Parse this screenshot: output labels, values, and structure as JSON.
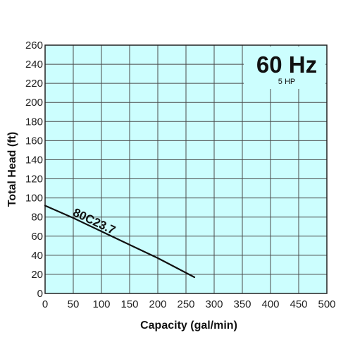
{
  "chart_data": {
    "type": "line",
    "title": "60 Hz",
    "subtitle": "5 HP",
    "xlabel": "Capacity (gal/min)",
    "ylabel": "Total Head (ft)",
    "xlim": [
      0,
      500
    ],
    "ylim": [
      0,
      260
    ],
    "xticks": [
      0,
      50,
      100,
      150,
      200,
      250,
      300,
      350,
      400,
      450,
      500
    ],
    "yticks": [
      0,
      20,
      40,
      60,
      80,
      100,
      120,
      140,
      160,
      180,
      200,
      220,
      240,
      260
    ],
    "grid": true,
    "series": [
      {
        "name": "80C23.7",
        "x": [
          0,
          50,
          100,
          150,
          200,
          265
        ],
        "y": [
          92,
          79,
          65,
          51,
          37,
          17
        ]
      }
    ],
    "colors": {
      "plot_background": "#ccfefe",
      "grid": "#4a4a4a",
      "line": "#111111"
    }
  }
}
